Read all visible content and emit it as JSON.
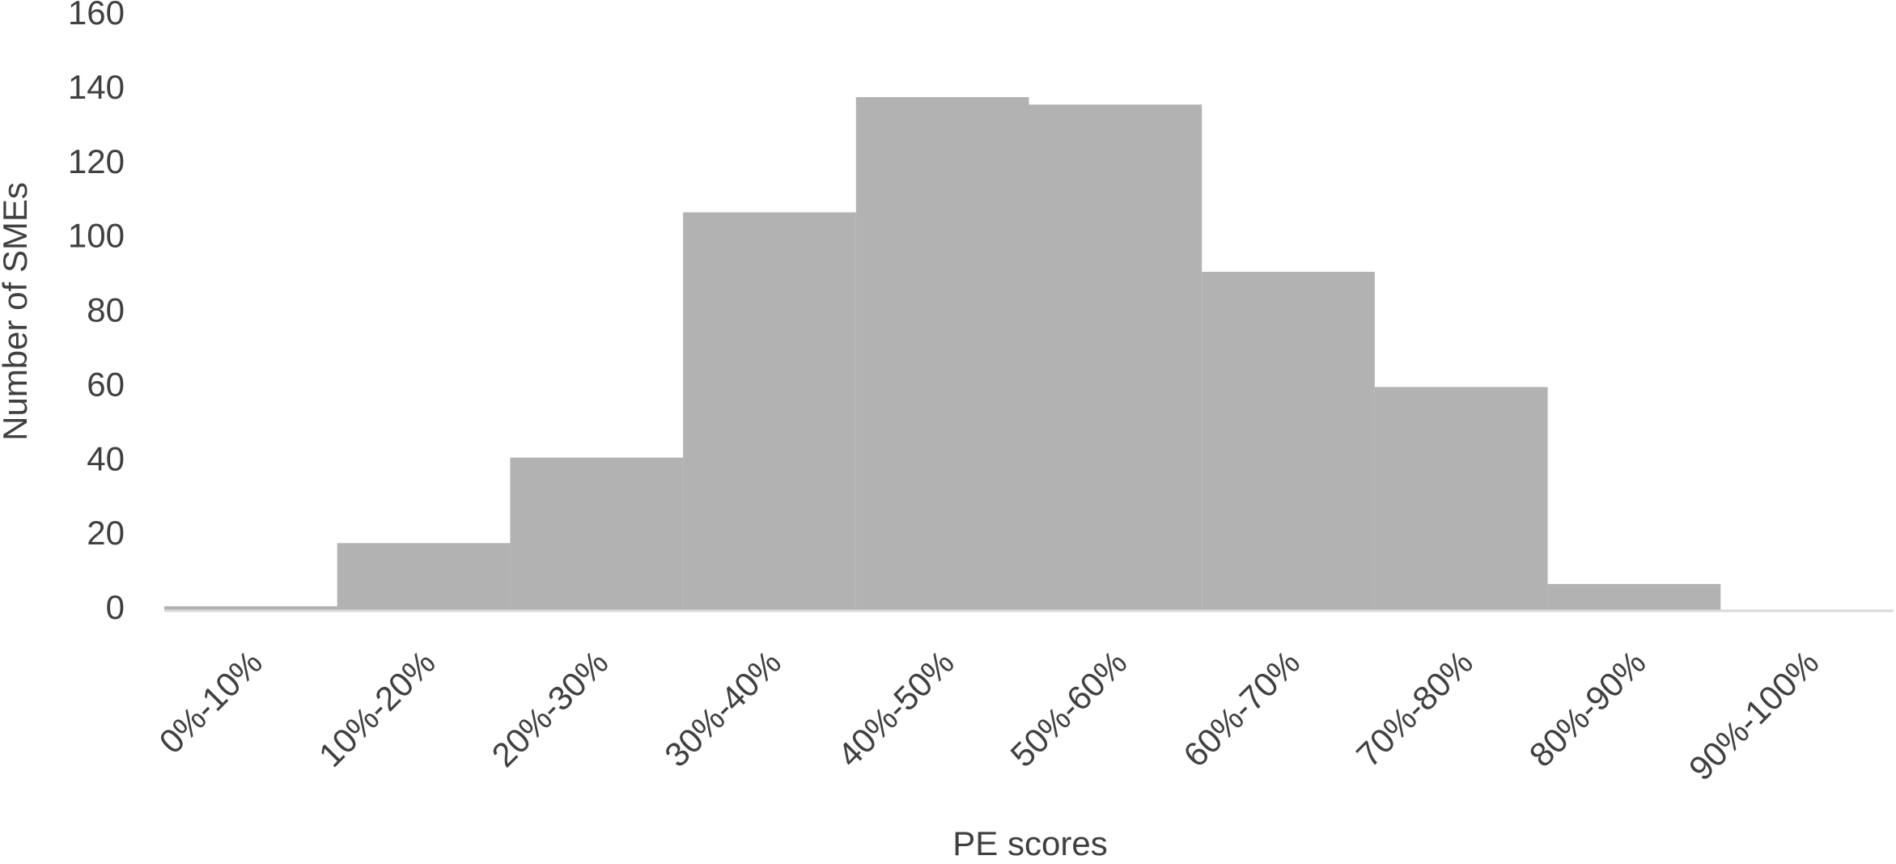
{
  "chart_data": {
    "type": "bar",
    "x_label": "PE scores",
    "y_label": "Number of SMEs",
    "categories": [
      "0%-10%",
      "10%-20%",
      "20%-30%",
      "30%-40%",
      "40%-50%",
      "50%-60%",
      "60%-70%",
      "70%-80%",
      "80%-90%",
      "90%-100%"
    ],
    "values": [
      1,
      18,
      41,
      107,
      138,
      136,
      91,
      60,
      7,
      0
    ],
    "color": "#b2b2b2",
    "ylim": [
      0,
      160
    ],
    "yticks": [
      0,
      20,
      40,
      60,
      80,
      100,
      120,
      140,
      160
    ],
    "grid": false
  }
}
